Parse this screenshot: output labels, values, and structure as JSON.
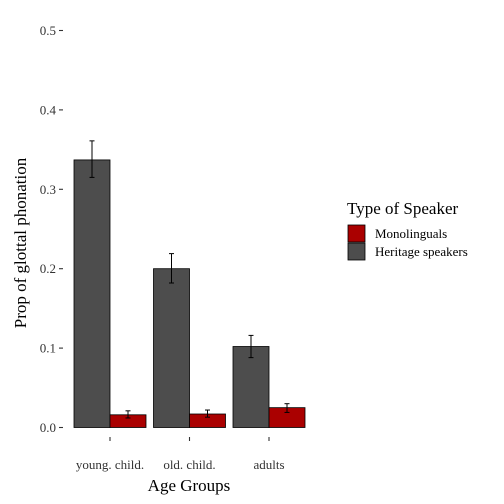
{
  "chart_data": {
    "type": "bar",
    "xlabel": "Age Groups",
    "ylabel": "Prop of glottal phonation",
    "ylim": [
      0,
      0.5
    ],
    "y_ticks": [
      "0.0",
      "0.1",
      "0.2",
      "0.3",
      "0.4",
      "0.5"
    ],
    "categories": [
      "young. child.",
      "old. child.",
      "adults"
    ],
    "series": [
      {
        "name": "Heritage speakers",
        "color": "#4d4d4d",
        "values": [
          0.337,
          0.2,
          0.102
        ],
        "error_low": [
          0.315,
          0.182,
          0.088
        ],
        "error_high": [
          0.361,
          0.219,
          0.116
        ]
      },
      {
        "name": "Monolinguals",
        "color": "#aa0000",
        "values": [
          0.016,
          0.017,
          0.025
        ],
        "error_low": [
          0.012,
          0.013,
          0.019
        ],
        "error_high": [
          0.021,
          0.022,
          0.03
        ]
      }
    ],
    "legend": {
      "title": "Type of Speaker",
      "position": "right",
      "entries": [
        "Monolinguals",
        "Heritage speakers"
      ]
    },
    "grid": false
  }
}
